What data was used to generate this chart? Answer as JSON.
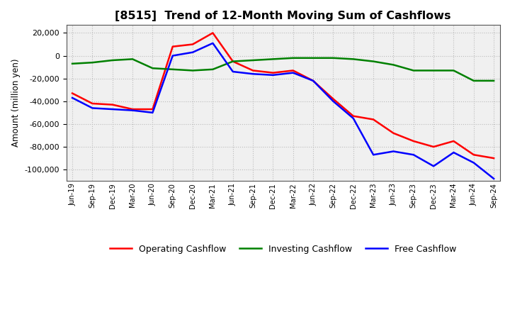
{
  "title": "[8515]  Trend of 12-Month Moving Sum of Cashflows",
  "ylabel": "Amount (million yen)",
  "ylim": [
    -110000,
    27000
  ],
  "yticks": [
    -100000,
    -80000,
    -60000,
    -40000,
    -20000,
    0,
    20000
  ],
  "background_color": "#ffffff",
  "plot_bg_color": "#f0f0f0",
  "grid_color": "#bbbbbb",
  "labels": {
    "x": [
      "Jun-19",
      "Sep-19",
      "Dec-19",
      "Mar-20",
      "Jun-20",
      "Sep-20",
      "Dec-20",
      "Mar-21",
      "Jun-21",
      "Sep-21",
      "Dec-21",
      "Mar-22",
      "Jun-22",
      "Sep-22",
      "Dec-22",
      "Mar-23",
      "Jun-23",
      "Sep-23",
      "Dec-23",
      "Mar-24",
      "Jun-24",
      "Sep-24"
    ]
  },
  "operating": [
    -33000,
    -42000,
    -43000,
    -47000,
    -47000,
    8000,
    10000,
    20000,
    -5000,
    -13000,
    -15000,
    -13000,
    -22000,
    -38000,
    -53000,
    -56000,
    -68000,
    -75000,
    -80000,
    -75000,
    -87000,
    -90000
  ],
  "investing": [
    -7000,
    -6000,
    -4000,
    -3000,
    -11000,
    -12000,
    -13000,
    -12000,
    -5000,
    -4000,
    -3000,
    -2000,
    -2000,
    -2000,
    -3000,
    -5000,
    -8000,
    -13000,
    -13000,
    -13000,
    -22000,
    -22000
  ],
  "free": [
    -37000,
    -46000,
    -47000,
    -48000,
    -50000,
    0,
    3000,
    11000,
    -14000,
    -16000,
    -17000,
    -15000,
    -22000,
    -40000,
    -55000,
    -87000,
    -84000,
    -87000,
    -97000,
    -85000,
    -94000,
    -108000
  ],
  "operating_color": "#ff0000",
  "investing_color": "#008000",
  "free_color": "#0000ff",
  "line_width": 1.8,
  "legend_labels": [
    "Operating Cashflow",
    "Investing Cashflow",
    "Free Cashflow"
  ]
}
